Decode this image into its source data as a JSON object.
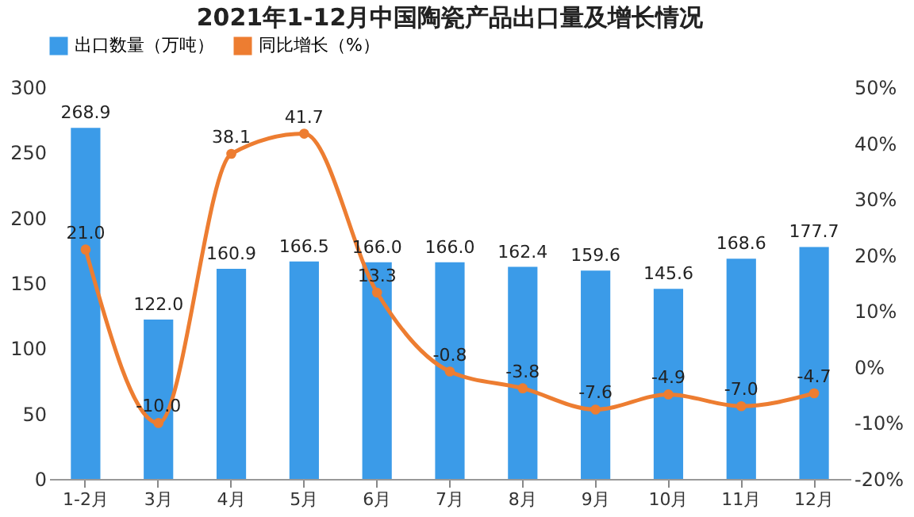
{
  "chart_data": {
    "type": "bar",
    "title": "2021年1-12月中国陶瓷产品出口量及增长情况",
    "categories": [
      "1-2月",
      "3月",
      "4月",
      "5月",
      "6月",
      "7月",
      "8月",
      "9月",
      "10月",
      "11月",
      "12月"
    ],
    "series": [
      {
        "name": "出口数量（万吨）",
        "color": "#3b9be8",
        "values": [
          268.9,
          122.0,
          160.9,
          166.5,
          166.0,
          166.0,
          162.4,
          159.6,
          145.6,
          168.6,
          177.7
        ],
        "value_labels": [
          "268.9",
          "122.0",
          "160.9",
          "166.5",
          "166.0",
          "166.0",
          "162.4",
          "159.6",
          "145.6",
          "168.6",
          "177.7"
        ]
      },
      {
        "name": "同比增长（%）",
        "type": "line",
        "axis": "y2",
        "color": "#ed7d31",
        "values": [
          21.0,
          -10.0,
          38.1,
          41.7,
          13.3,
          -0.8,
          -3.8,
          -7.6,
          -4.9,
          -7.0,
          -4.7
        ],
        "value_labels": [
          "21.0",
          "-10.0",
          "38.1",
          "41.7",
          "13.3",
          "-0.8",
          "-3.8",
          "-7.6",
          "-4.9",
          "-7.0",
          "-4.7"
        ]
      }
    ],
    "ylim": [
      0,
      300
    ],
    "yticks": [
      0,
      50,
      100,
      150,
      200,
      250,
      300
    ],
    "y2lim": [
      -20,
      50
    ],
    "y2ticks": [
      {
        "value": -20,
        "label": "-20%"
      },
      {
        "value": -10,
        "label": "-10%"
      },
      {
        "value": 0,
        "label": "0%"
      },
      {
        "value": 10,
        "label": "10%"
      },
      {
        "value": 20,
        "label": "20%"
      },
      {
        "value": 30,
        "label": "30%"
      },
      {
        "value": 40,
        "label": "40%"
      },
      {
        "value": 50,
        "label": "50%"
      }
    ],
    "legend": "top",
    "marker": "circle"
  }
}
